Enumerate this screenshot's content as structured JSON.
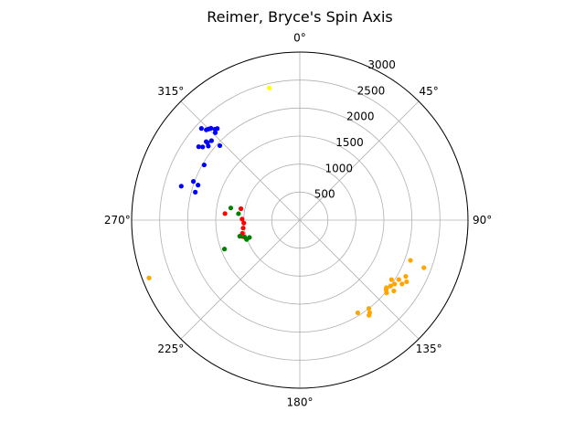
{
  "chart_data": {
    "type": "scatter",
    "projection": "polar",
    "title": "Reimer, Bryce's Spin Axis",
    "theta_zero_location": "N",
    "theta_direction": "clockwise",
    "theta_ticks": [
      0,
      45,
      90,
      135,
      180,
      225,
      270,
      315
    ],
    "theta_tick_labels": [
      "0°",
      "45°",
      "90°",
      "135°",
      "180°",
      "225°",
      "270°",
      "315°"
    ],
    "r_ticks": [
      500,
      1000,
      1500,
      2000,
      2500,
      3000
    ],
    "r_tick_labels": [
      "500",
      "1000",
      "1500",
      "2000",
      "2500",
      "3000"
    ],
    "r_tick_label_angle": 22.5,
    "rlim": [
      0,
      3000
    ],
    "grid": true,
    "legend": "none",
    "series": [
      {
        "color": "#0000ff",
        "points": [
          {
            "theta": 313,
            "r": 2400
          },
          {
            "theta": 315,
            "r": 2300
          },
          {
            "theta": 317,
            "r": 2220
          },
          {
            "theta": 316,
            "r": 2280
          },
          {
            "theta": 318,
            "r": 2200
          },
          {
            "theta": 314,
            "r": 2320
          },
          {
            "theta": 316,
            "r": 2170
          },
          {
            "theta": 310,
            "r": 2180
          },
          {
            "theta": 312,
            "r": 2120
          },
          {
            "theta": 306,
            "r": 2230
          },
          {
            "theta": 307,
            "r": 2170
          },
          {
            "theta": 309,
            "r": 2100
          },
          {
            "theta": 310,
            "r": 2150
          },
          {
            "theta": 313,
            "r": 1950
          },
          {
            "theta": 300,
            "r": 1970
          },
          {
            "theta": 286,
            "r": 2200
          },
          {
            "theta": 290,
            "r": 2020
          },
          {
            "theta": 289,
            "r": 1920
          },
          {
            "theta": 285,
            "r": 1930
          }
        ]
      },
      {
        "color": "#ffa500",
        "points": [
          {
            "theta": 110,
            "r": 2100
          },
          {
            "theta": 111,
            "r": 2370
          },
          {
            "theta": 118,
            "r": 2140
          },
          {
            "theta": 120,
            "r": 2200
          },
          {
            "theta": 121,
            "r": 2060
          },
          {
            "theta": 122,
            "r": 2150
          },
          {
            "theta": 123,
            "r": 1950
          },
          {
            "theta": 124,
            "r": 2040
          },
          {
            "theta": 126,
            "r": 2000
          },
          {
            "theta": 127,
            "r": 2100
          },
          {
            "theta": 128,
            "r": 1960
          },
          {
            "theta": 129,
            "r": 1980
          },
          {
            "theta": 130,
            "r": 2020
          },
          {
            "theta": 142,
            "r": 2000
          },
          {
            "theta": 143,
            "r": 2070
          },
          {
            "theta": 144,
            "r": 2100
          },
          {
            "theta": 148,
            "r": 1950
          },
          {
            "theta": 249,
            "r": 2880
          }
        ]
      },
      {
        "color": "#ff0000",
        "points": [
          {
            "theta": 281,
            "r": 1070
          },
          {
            "theta": 271,
            "r": 1030
          },
          {
            "theta": 275,
            "r": 1340
          },
          {
            "theta": 267,
            "r": 1000
          },
          {
            "theta": 257,
            "r": 1050
          },
          {
            "theta": 262,
            "r": 1020
          },
          {
            "theta": 254,
            "r": 1060
          }
        ]
      },
      {
        "color": "#008000",
        "points": [
          {
            "theta": 276,
            "r": 1100
          },
          {
            "theta": 280,
            "r": 1250
          },
          {
            "theta": 253,
            "r": 1030
          },
          {
            "theta": 255,
            "r": 1110
          },
          {
            "theta": 251,
            "r": 950
          },
          {
            "theta": 250,
            "r": 1010
          },
          {
            "theta": 249,
            "r": 1440
          }
        ]
      },
      {
        "color": "#ffff00",
        "points": [
          {
            "theta": 347,
            "r": 2420
          }
        ]
      }
    ]
  }
}
